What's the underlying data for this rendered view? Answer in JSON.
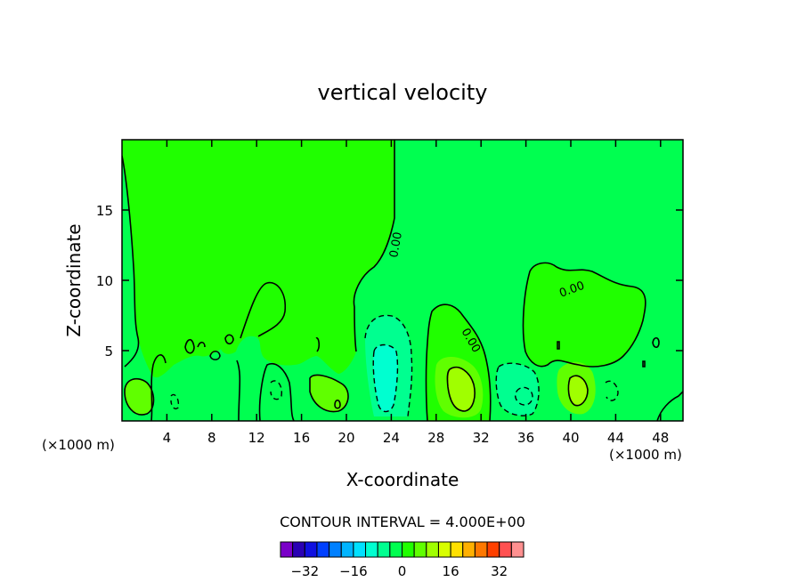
{
  "chart_data": {
    "type": "heatmap",
    "title": "vertical velocity",
    "xlabel": "X-coordinate",
    "ylabel": "Z-coordinate",
    "x_unit_left": "(×1000 m)",
    "x_unit_right": "(×1000 m)",
    "xlim": [
      0,
      50
    ],
    "ylim": [
      0,
      20
    ],
    "x_ticks": [
      4,
      8,
      12,
      16,
      20,
      24,
      28,
      32,
      36,
      40,
      44,
      48
    ],
    "y_ticks": [
      5,
      10,
      15
    ],
    "contour_interval_label": "CONTOUR INTERVAL = 4.000E+00",
    "contour_labels": [
      "0.00",
      "0.00",
      "0.00"
    ],
    "colorbar": {
      "levels": [
        -36,
        -32,
        -28,
        -24,
        -20,
        -16,
        -12,
        -8,
        -4,
        0,
        4,
        8,
        12,
        16,
        20,
        24,
        28,
        32,
        36
      ],
      "tick_labels": [
        "-32",
        "-16",
        "0",
        "16",
        "32"
      ],
      "tick_values": [
        -32,
        -16,
        0,
        16,
        32
      ],
      "colors": [
        "#7a00c8",
        "#2a00b4",
        "#1010e0",
        "#0040ff",
        "#0080ff",
        "#00b4ff",
        "#00e0ff",
        "#00ffd0",
        "#00ff90",
        "#00ff50",
        "#20ff00",
        "#60ff00",
        "#a0ff00",
        "#d8ff00",
        "#ffe000",
        "#ffb000",
        "#ff7800",
        "#ff4000",
        "#ff5050",
        "#ff9090"
      ]
    },
    "background_color": "#00ff50",
    "features": [
      {
        "kind": "updraft",
        "x": 1.6,
        "z": 1.5,
        "value": 4
      },
      {
        "kind": "updraft",
        "x": 18.8,
        "z": 1.5,
        "value": 4
      },
      {
        "kind": "downdraft",
        "x": 23.8,
        "z": 3.0,
        "value": -8
      },
      {
        "kind": "updraft",
        "x": 30.0,
        "z": 2.5,
        "value": 8
      },
      {
        "kind": "downdraft",
        "x": 35.8,
        "z": 1.8,
        "value": -4
      },
      {
        "kind": "updraft",
        "x": 40.5,
        "z": 2.3,
        "value": 8
      }
    ]
  }
}
